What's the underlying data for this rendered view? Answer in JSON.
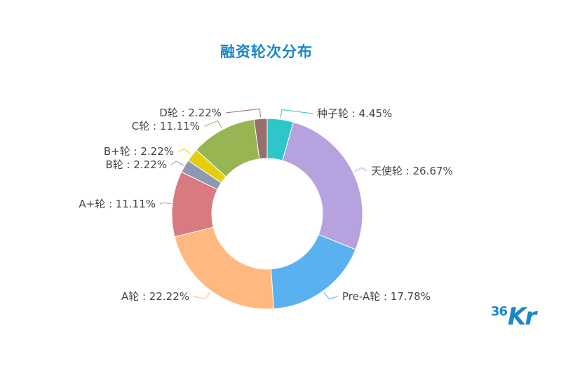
{
  "chart_data": {
    "type": "pie",
    "title": "融资轮次分布",
    "categories": [
      "种子轮",
      "天使轮",
      "Pre-A轮",
      "A轮",
      "A+轮",
      "B轮",
      "B+轮",
      "C轮",
      "D轮"
    ],
    "values": [
      4.45,
      26.67,
      17.78,
      22.22,
      11.11,
      2.22,
      2.22,
      11.11,
      2.22
    ],
    "labels": [
      "种子轮 : 4.45%",
      "天使轮 : 26.67%",
      "Pre-A轮 : 17.78%",
      "A轮 : 22.22%",
      "A+轮 : 11.11%",
      "B轮 : 2.22%",
      "B+轮 : 2.22%",
      "C轮 : 11.11%",
      "D轮 : 2.22%"
    ],
    "colors": [
      "#2ec7c9",
      "#b6a2de",
      "#5ab1ef",
      "#ffb980",
      "#d87a80",
      "#8d98b3",
      "#e5cf0d",
      "#97b552",
      "#95706d"
    ],
    "donut": true
  },
  "logo": {
    "num": "36",
    "kr": "Kr"
  }
}
